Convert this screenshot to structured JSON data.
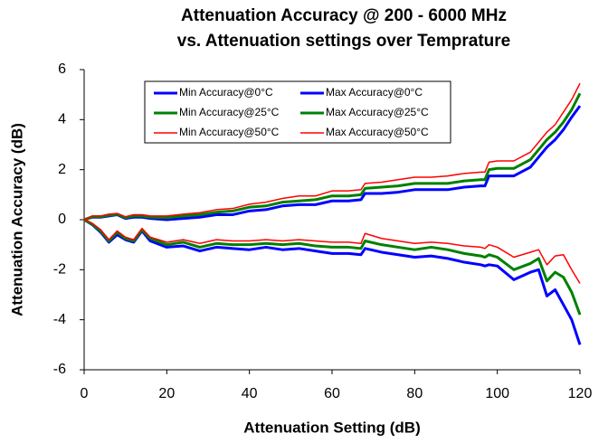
{
  "chart_data": {
    "type": "line",
    "title": [
      "Attenuation Accuracy @ 200 - 6000 MHz",
      "vs. Attenuation settings over Temprature"
    ],
    "x_label": "Attenuation Setting (dB)",
    "y_label": "Attenuation Accuracy (dB)",
    "xlim": [
      0,
      120
    ],
    "xticks": [
      0,
      20,
      40,
      60,
      80,
      100,
      120
    ],
    "ylim": [
      -6,
      6
    ],
    "yticks": [
      -6,
      -4,
      -2,
      0,
      2,
      4,
      6
    ],
    "grid": false,
    "legend": "upper left",
    "x": [
      0,
      2,
      4,
      6,
      8,
      10,
      12,
      14,
      16,
      20,
      24,
      28,
      32,
      36,
      40,
      44,
      48,
      52,
      56,
      60,
      64,
      67,
      68,
      72,
      76,
      80,
      84,
      88,
      92,
      96,
      97,
      98,
      100,
      104,
      108,
      110,
      112,
      114,
      116,
      118,
      120
    ],
    "series": [
      {
        "name": "Min Accuracy@0°C",
        "color": "#0000ff",
        "line_width": 3,
        "values": [
          0,
          -0.2,
          -0.5,
          -0.9,
          -0.6,
          -0.8,
          -0.9,
          -0.45,
          -0.85,
          -1.1,
          -1.05,
          -1.25,
          -1.1,
          -1.15,
          -1.2,
          -1.1,
          -1.2,
          -1.15,
          -1.25,
          -1.35,
          -1.35,
          -1.4,
          -1.15,
          -1.3,
          -1.4,
          -1.5,
          -1.45,
          -1.55,
          -1.7,
          -1.8,
          -1.85,
          -1.8,
          -1.85,
          -2.4,
          -2.1,
          -2.0,
          -3.05,
          -2.8,
          -3.4,
          -4.0,
          -5.0
        ]
      },
      {
        "name": "Max Accuracy@0°C",
        "color": "#0000ff",
        "line_width": 3,
        "values": [
          0,
          0.1,
          0.1,
          0.15,
          0.2,
          0.05,
          0.1,
          0.1,
          0.05,
          0,
          0.05,
          0.1,
          0.2,
          0.2,
          0.35,
          0.4,
          0.55,
          0.6,
          0.6,
          0.75,
          0.75,
          0.8,
          1.05,
          1.05,
          1.1,
          1.2,
          1.2,
          1.2,
          1.3,
          1.35,
          1.35,
          1.75,
          1.75,
          1.75,
          2.1,
          2.5,
          2.9,
          3.2,
          3.6,
          4.1,
          4.55
        ]
      },
      {
        "name": "Min Accuracy@25°C",
        "color": "#008000",
        "line_width": 3,
        "values": [
          0,
          -0.18,
          -0.45,
          -0.85,
          -0.5,
          -0.75,
          -0.85,
          -0.4,
          -0.75,
          -1.0,
          -0.9,
          -1.1,
          -0.95,
          -1.0,
          -1.0,
          -0.95,
          -1.0,
          -0.95,
          -1.05,
          -1.1,
          -1.1,
          -1.15,
          -0.85,
          -1.0,
          -1.1,
          -1.2,
          -1.1,
          -1.2,
          -1.35,
          -1.45,
          -1.5,
          -1.4,
          -1.5,
          -2.0,
          -1.75,
          -1.55,
          -2.45,
          -2.1,
          -2.3,
          -2.9,
          -3.8
        ]
      },
      {
        "name": "Max Accuracy@25°C",
        "color": "#008000",
        "line_width": 3,
        "values": [
          0,
          0.12,
          0.12,
          0.18,
          0.22,
          0.08,
          0.15,
          0.15,
          0.1,
          0.08,
          0.15,
          0.2,
          0.3,
          0.35,
          0.5,
          0.55,
          0.7,
          0.75,
          0.8,
          0.95,
          0.95,
          1.0,
          1.25,
          1.3,
          1.35,
          1.45,
          1.45,
          1.45,
          1.55,
          1.6,
          1.6,
          2.0,
          2.05,
          2.05,
          2.4,
          2.8,
          3.2,
          3.5,
          3.9,
          4.4,
          5.05
        ]
      },
      {
        "name": "Min Accuracy@50°C",
        "color": "#ff0000",
        "line_width": 1.5,
        "values": [
          0,
          -0.15,
          -0.4,
          -0.8,
          -0.45,
          -0.7,
          -0.8,
          -0.35,
          -0.7,
          -0.9,
          -0.8,
          -0.95,
          -0.8,
          -0.85,
          -0.85,
          -0.8,
          -0.85,
          -0.8,
          -0.85,
          -0.9,
          -0.9,
          -0.95,
          -0.55,
          -0.75,
          -0.85,
          -0.95,
          -0.9,
          -0.95,
          -1.05,
          -1.1,
          -1.15,
          -1.0,
          -1.1,
          -1.5,
          -1.3,
          -1.2,
          -1.8,
          -1.45,
          -1.4,
          -2.0,
          -2.55
        ]
      },
      {
        "name": "Max Accuracy@50°C",
        "color": "#ff0000",
        "line_width": 1.5,
        "values": [
          0,
          0.15,
          0.15,
          0.22,
          0.25,
          0.12,
          0.2,
          0.2,
          0.15,
          0.15,
          0.22,
          0.28,
          0.4,
          0.45,
          0.62,
          0.7,
          0.85,
          0.95,
          0.95,
          1.15,
          1.15,
          1.2,
          1.45,
          1.5,
          1.6,
          1.7,
          1.7,
          1.75,
          1.85,
          1.9,
          1.9,
          2.3,
          2.35,
          2.35,
          2.7,
          3.1,
          3.5,
          3.8,
          4.3,
          4.8,
          5.45
        ]
      }
    ]
  }
}
